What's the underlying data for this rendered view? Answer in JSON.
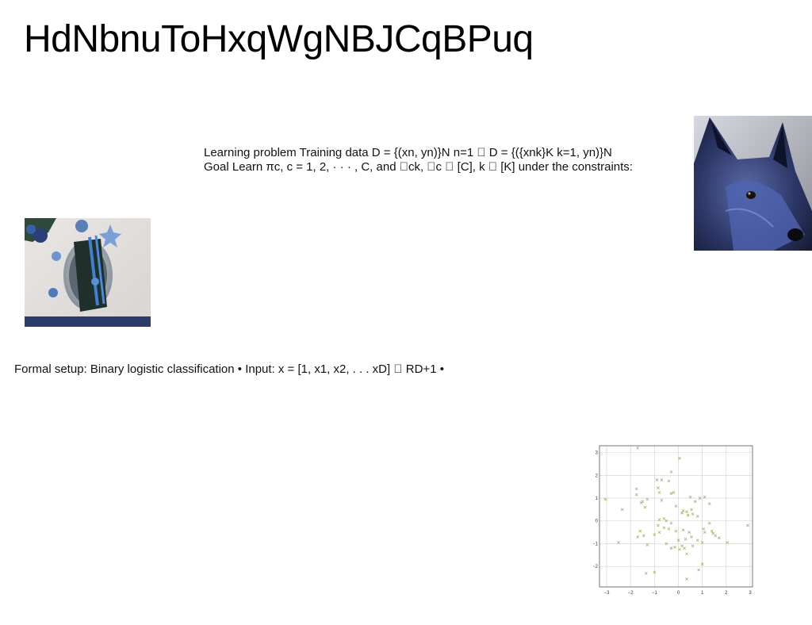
{
  "slide": {
    "title": "HdNbnuToHxqWgNBJCqBPuq",
    "learning_line1": "Learning problem Training data D = {(xn, yn)}N n=1 ⃞ D = {({xnk}K k=1, yn)}N",
    "learning_line2": "Goal Learn πc, c = 1, 2, · · · , C, and ⃞ck, ⃞c ⃞ [C], k ⃞ [K] under the constraints:",
    "formal_setup": "Formal setup: Binary logistic classification • Input: x = [1, x1, x2, . . . xD] ⃞ RD+1 •"
  },
  "images": {
    "table_setting": "table-setting-photo",
    "dog": "dog-photo"
  },
  "chart_data": {
    "type": "scatter",
    "marker": "x",
    "color": "#a8b26a",
    "grid": true,
    "xlim": [
      -3.3,
      3.1
    ],
    "ylim": [
      -2.9,
      3.3
    ],
    "xticks": [
      "−3",
      "−2",
      "−1",
      "0",
      "1",
      "2",
      "3"
    ],
    "yticks": [
      "3",
      "2",
      "1",
      "0",
      "−1",
      "−2"
    ],
    "points": [
      [
        -1.7,
        3.2
      ],
      [
        0.05,
        2.75
      ],
      [
        -0.3,
        2.15
      ],
      [
        -0.9,
        1.8
      ],
      [
        -0.7,
        1.8
      ],
      [
        -0.4,
        1.75
      ],
      [
        -1.75,
        1.4
      ],
      [
        -0.85,
        1.45
      ],
      [
        -1.75,
        1.15
      ],
      [
        -0.8,
        1.25
      ],
      [
        -0.3,
        1.2
      ],
      [
        -0.2,
        1.25
      ],
      [
        -1.5,
        0.85
      ],
      [
        -1.3,
        0.95
      ],
      [
        -1.55,
        0.8
      ],
      [
        -0.7,
        0.9
      ],
      [
        0.5,
        1.05
      ],
      [
        0.7,
        0.85
      ],
      [
        1.1,
        1.05
      ],
      [
        0.9,
        1.0
      ],
      [
        1.3,
        0.75
      ],
      [
        -3.05,
        0.95
      ],
      [
        -2.35,
        0.5
      ],
      [
        -1.4,
        0.6
      ],
      [
        -0.1,
        0.65
      ],
      [
        0.2,
        0.45
      ],
      [
        0.35,
        0.4
      ],
      [
        0.55,
        0.5
      ],
      [
        0.6,
        0.3
      ],
      [
        0.4,
        0.25
      ],
      [
        0.8,
        0.2
      ],
      [
        0.15,
        0.35
      ],
      [
        -0.6,
        0.1
      ],
      [
        -0.5,
        0.0
      ],
      [
        -0.8,
        0.05
      ],
      [
        -0.85,
        -0.2
      ],
      [
        -0.3,
        -0.1
      ],
      [
        -0.6,
        -0.3
      ],
      [
        -0.4,
        -0.35
      ],
      [
        -0.1,
        -0.45
      ],
      [
        0.2,
        -0.4
      ],
      [
        0.45,
        -0.5
      ],
      [
        0.3,
        -0.8
      ],
      [
        0.0,
        -0.85
      ],
      [
        0.55,
        -0.7
      ],
      [
        -1.6,
        -0.45
      ],
      [
        -1.7,
        -0.7
      ],
      [
        -1.45,
        -0.65
      ],
      [
        -1.0,
        -0.6
      ],
      [
        -0.8,
        -0.5
      ],
      [
        -2.5,
        -0.95
      ],
      [
        -1.3,
        -1.05
      ],
      [
        -0.5,
        -1.0
      ],
      [
        -0.3,
        -1.2
      ],
      [
        -0.15,
        -1.15
      ],
      [
        0.15,
        -1.1
      ],
      [
        0.05,
        -1.25
      ],
      [
        0.25,
        -1.2
      ],
      [
        0.6,
        -1.1
      ],
      [
        0.8,
        -0.85
      ],
      [
        1.0,
        -0.95
      ],
      [
        1.1,
        -0.5
      ],
      [
        1.4,
        -0.45
      ],
      [
        1.55,
        -0.65
      ],
      [
        1.45,
        -0.55
      ],
      [
        1.7,
        -0.75
      ],
      [
        1.3,
        -0.1
      ],
      [
        2.05,
        -0.95
      ],
      [
        2.9,
        -0.2
      ],
      [
        0.35,
        -1.45
      ],
      [
        1.0,
        -1.9
      ],
      [
        0.85,
        -2.15
      ],
      [
        -1.0,
        -2.25
      ],
      [
        -1.35,
        -2.3
      ],
      [
        0.35,
        -2.55
      ],
      [
        1.05,
        -0.35
      ]
    ]
  }
}
